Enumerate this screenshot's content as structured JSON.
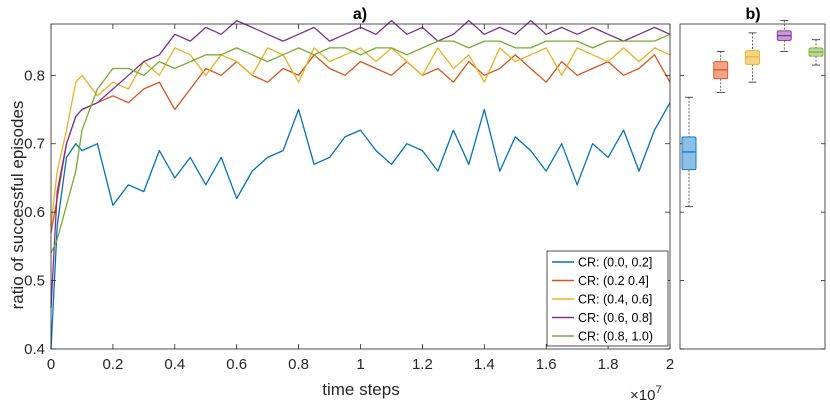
{
  "chart_data": [
    {
      "panel": "a)",
      "type": "line",
      "title": "a)",
      "xlabel": "time steps",
      "ylabel": "ratio of successful episodes",
      "xlim": [
        0,
        2
      ],
      "ylim": [
        0.4,
        0.875
      ],
      "x_scale_label": "×10",
      "x_scale_exp": "7",
      "xticks": [
        "0",
        "0.2",
        "0.4",
        "0.6",
        "0.8",
        "1",
        "1.2",
        "1.4",
        "1.6",
        "1.8",
        "2"
      ],
      "yticks": [
        "0.4",
        "0.5",
        "0.6",
        "0.7",
        "0.8"
      ],
      "legend_position": "bottom-right",
      "x": [
        0,
        0.02,
        0.05,
        0.08,
        0.1,
        0.15,
        0.2,
        0.25,
        0.3,
        0.35,
        0.4,
        0.45,
        0.5,
        0.55,
        0.6,
        0.65,
        0.7,
        0.75,
        0.8,
        0.85,
        0.9,
        0.95,
        1.0,
        1.05,
        1.1,
        1.15,
        1.2,
        1.25,
        1.3,
        1.35,
        1.4,
        1.45,
        1.5,
        1.55,
        1.6,
        1.65,
        1.7,
        1.75,
        1.8,
        1.85,
        1.9,
        1.95,
        2.0
      ],
      "series": [
        {
          "name": "CR: (0.0, 0.2]",
          "color": "#0072BD",
          "values": [
            0.4,
            0.58,
            0.68,
            0.7,
            0.69,
            0.7,
            0.61,
            0.64,
            0.63,
            0.69,
            0.65,
            0.68,
            0.64,
            0.68,
            0.62,
            0.66,
            0.68,
            0.69,
            0.75,
            0.67,
            0.68,
            0.71,
            0.72,
            0.69,
            0.67,
            0.7,
            0.69,
            0.66,
            0.72,
            0.67,
            0.75,
            0.66,
            0.71,
            0.69,
            0.66,
            0.7,
            0.64,
            0.7,
            0.68,
            0.72,
            0.66,
            0.72,
            0.76
          ]
        },
        {
          "name": "CR: (0.2 0.4]",
          "color": "#D95319",
          "values": [
            0.57,
            0.62,
            0.7,
            0.74,
            0.75,
            0.76,
            0.77,
            0.76,
            0.78,
            0.79,
            0.75,
            0.78,
            0.81,
            0.8,
            0.82,
            0.8,
            0.79,
            0.81,
            0.8,
            0.83,
            0.81,
            0.8,
            0.82,
            0.81,
            0.8,
            0.82,
            0.8,
            0.81,
            0.79,
            0.82,
            0.8,
            0.81,
            0.83,
            0.81,
            0.79,
            0.82,
            0.8,
            0.81,
            0.82,
            0.8,
            0.81,
            0.83,
            0.79
          ]
        },
        {
          "name": "CR: (0.4, 0.6]",
          "color": "#EDB120",
          "values": [
            0.58,
            0.66,
            0.72,
            0.79,
            0.8,
            0.77,
            0.79,
            0.78,
            0.82,
            0.8,
            0.84,
            0.83,
            0.8,
            0.83,
            0.82,
            0.8,
            0.84,
            0.83,
            0.79,
            0.84,
            0.82,
            0.83,
            0.84,
            0.82,
            0.84,
            0.82,
            0.8,
            0.84,
            0.81,
            0.83,
            0.79,
            0.84,
            0.82,
            0.83,
            0.84,
            0.8,
            0.84,
            0.83,
            0.82,
            0.84,
            0.82,
            0.84,
            0.83
          ]
        },
        {
          "name": "CR: (0.6, 0.8]",
          "color": "#7E2F8E",
          "values": [
            0.46,
            0.63,
            0.7,
            0.74,
            0.75,
            0.76,
            0.78,
            0.8,
            0.82,
            0.83,
            0.86,
            0.85,
            0.87,
            0.86,
            0.88,
            0.87,
            0.86,
            0.85,
            0.86,
            0.87,
            0.85,
            0.86,
            0.87,
            0.86,
            0.88,
            0.86,
            0.87,
            0.85,
            0.86,
            0.88,
            0.86,
            0.87,
            0.86,
            0.88,
            0.86,
            0.87,
            0.86,
            0.87,
            0.86,
            0.85,
            0.86,
            0.87,
            0.86
          ]
        },
        {
          "name": "CR: (0.8, 1.0)",
          "color": "#77AC30",
          "values": [
            0.54,
            0.56,
            0.61,
            0.66,
            0.72,
            0.78,
            0.81,
            0.81,
            0.8,
            0.82,
            0.81,
            0.82,
            0.83,
            0.83,
            0.84,
            0.83,
            0.82,
            0.83,
            0.84,
            0.83,
            0.84,
            0.84,
            0.83,
            0.84,
            0.84,
            0.83,
            0.84,
            0.85,
            0.85,
            0.84,
            0.85,
            0.85,
            0.84,
            0.84,
            0.85,
            0.85,
            0.85,
            0.84,
            0.85,
            0.85,
            0.85,
            0.85,
            0.86
          ]
        }
      ]
    },
    {
      "panel": "b)",
      "type": "box",
      "title": "b)",
      "ylim": [
        0.4,
        0.875
      ],
      "boxes": [
        {
          "name": "CR: (0.0, 0.2]",
          "color": "#0072BD",
          "fill": "#8DBFE6",
          "whisker_low": 0.608,
          "q1": 0.662,
          "median": 0.688,
          "q3": 0.71,
          "whisker_high": 0.768
        },
        {
          "name": "CR: (0.2 0.4]",
          "color": "#D95319",
          "fill": "#F2A488",
          "whisker_low": 0.775,
          "q1": 0.795,
          "median": 0.808,
          "q3": 0.82,
          "whisker_high": 0.835
        },
        {
          "name": "CR: (0.4, 0.6]",
          "color": "#EDB120",
          "fill": "#F7D489",
          "whisker_low": 0.79,
          "q1": 0.816,
          "median": 0.827,
          "q3": 0.836,
          "whisker_high": 0.862
        },
        {
          "name": "CR: (0.6, 0.8]",
          "color": "#7E2F8E",
          "fill": "#C79AD3",
          "whisker_low": 0.835,
          "q1": 0.851,
          "median": 0.858,
          "q3": 0.865,
          "whisker_high": 0.88
        },
        {
          "name": "CR: (0.8, 1.0)",
          "color": "#77AC30",
          "fill": "#BCD79A",
          "whisker_low": 0.815,
          "q1": 0.828,
          "median": 0.834,
          "q3": 0.84,
          "whisker_high": 0.852
        }
      ]
    }
  ]
}
